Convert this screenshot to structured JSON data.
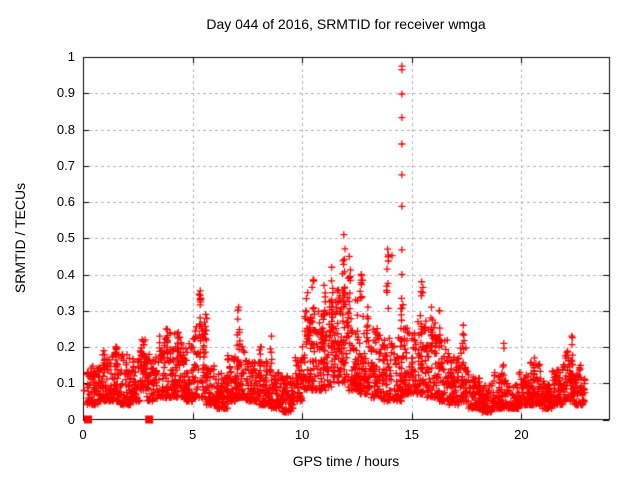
{
  "window": {
    "background": "#ffffff"
  },
  "chart_data": {
    "type": "scatter",
    "title": "Day 044 of 2016, SRMTID for receiver wmga",
    "xlabel": "GPS time / hours",
    "ylabel": "SRMTID / TECUs",
    "xlim": [
      0,
      24
    ],
    "ylim": [
      0,
      1
    ],
    "xticks": [
      "0",
      "5",
      "10",
      "15",
      "20"
    ],
    "yticks": [
      "0",
      "0.1",
      "0.2",
      "0.3",
      "0.4",
      "0.5",
      "0.6",
      "0.7",
      "0.8",
      "0.9",
      "1"
    ],
    "grid": true,
    "legend": "none",
    "marker": "plus",
    "marker_color": "#ff0000",
    "grid_color": "#b3b3b3",
    "border_color": "#000000",
    "band_segments": [
      [
        0.2,
        0.7,
        0.04,
        0.15,
        60
      ],
      [
        0.7,
        1.2,
        0.05,
        0.17,
        60
      ],
      [
        1.2,
        1.7,
        0.05,
        0.2,
        60
      ],
      [
        1.7,
        2.2,
        0.04,
        0.18,
        60
      ],
      [
        2.2,
        2.6,
        0.05,
        0.17,
        48
      ],
      [
        2.6,
        2.9,
        0.08,
        0.22,
        40
      ],
      [
        2.9,
        3.4,
        0.05,
        0.18,
        60
      ],
      [
        3.4,
        3.9,
        0.06,
        0.24,
        60
      ],
      [
        3.9,
        4.5,
        0.06,
        0.24,
        70
      ],
      [
        4.5,
        5.0,
        0.05,
        0.21,
        60
      ],
      [
        5.0,
        5.6,
        0.06,
        0.27,
        70
      ],
      [
        5.6,
        6.1,
        0.04,
        0.15,
        60
      ],
      [
        6.1,
        6.6,
        0.03,
        0.13,
        60
      ],
      [
        6.6,
        7.0,
        0.05,
        0.18,
        48
      ],
      [
        7.0,
        7.4,
        0.06,
        0.22,
        48
      ],
      [
        7.4,
        8.0,
        0.05,
        0.18,
        70
      ],
      [
        8.0,
        8.6,
        0.04,
        0.16,
        70
      ],
      [
        8.6,
        9.1,
        0.03,
        0.13,
        60
      ],
      [
        9.1,
        9.6,
        0.02,
        0.12,
        60
      ],
      [
        9.6,
        10.0,
        0.05,
        0.18,
        48
      ],
      [
        10.0,
        10.6,
        0.08,
        0.3,
        72
      ],
      [
        10.6,
        11.1,
        0.08,
        0.3,
        65
      ],
      [
        11.1,
        11.6,
        0.09,
        0.33,
        65
      ],
      [
        11.6,
        12.1,
        0.1,
        0.36,
        70
      ],
      [
        12.1,
        12.6,
        0.08,
        0.33,
        65
      ],
      [
        12.6,
        13.1,
        0.07,
        0.3,
        62
      ],
      [
        13.1,
        13.6,
        0.06,
        0.26,
        60
      ],
      [
        13.6,
        14.1,
        0.05,
        0.24,
        60
      ],
      [
        14.1,
        14.6,
        0.05,
        0.23,
        60
      ],
      [
        14.6,
        15.1,
        0.07,
        0.26,
        60
      ],
      [
        15.1,
        15.7,
        0.07,
        0.28,
        70
      ],
      [
        15.7,
        16.2,
        0.06,
        0.27,
        62
      ],
      [
        16.2,
        16.7,
        0.05,
        0.23,
        60
      ],
      [
        16.7,
        17.2,
        0.04,
        0.18,
        60
      ],
      [
        17.2,
        17.6,
        0.05,
        0.2,
        48
      ],
      [
        17.6,
        18.1,
        0.03,
        0.12,
        58
      ],
      [
        18.1,
        18.7,
        0.02,
        0.1,
        68
      ],
      [
        18.7,
        19.3,
        0.03,
        0.13,
        68
      ],
      [
        19.3,
        19.9,
        0.03,
        0.1,
        68
      ],
      [
        19.9,
        20.4,
        0.04,
        0.13,
        60
      ],
      [
        20.4,
        20.9,
        0.04,
        0.16,
        60
      ],
      [
        20.9,
        21.4,
        0.03,
        0.11,
        60
      ],
      [
        21.4,
        21.9,
        0.04,
        0.14,
        60
      ],
      [
        21.9,
        22.4,
        0.05,
        0.19,
        58
      ],
      [
        22.4,
        22.9,
        0.04,
        0.15,
        55
      ]
    ],
    "spike_columns": [
      [
        0.95,
        0.15,
        0.19,
        4
      ],
      [
        1.5,
        0.15,
        0.2,
        5
      ],
      [
        2.7,
        0.17,
        0.22,
        6
      ],
      [
        3.8,
        0.18,
        0.25,
        6
      ],
      [
        4.35,
        0.17,
        0.24,
        5
      ],
      [
        5.35,
        0.22,
        0.355,
        9
      ],
      [
        5.6,
        0.2,
        0.29,
        6
      ],
      [
        7.1,
        0.18,
        0.31,
        8
      ],
      [
        8.1,
        0.13,
        0.2,
        4
      ],
      [
        8.6,
        0.13,
        0.23,
        5
      ],
      [
        10.25,
        0.2,
        0.35,
        8
      ],
      [
        10.5,
        0.22,
        0.385,
        8
      ],
      [
        11.0,
        0.22,
        0.37,
        9
      ],
      [
        11.35,
        0.25,
        0.42,
        8
      ],
      [
        11.9,
        0.3,
        0.51,
        12
      ],
      [
        12.15,
        0.28,
        0.45,
        8
      ],
      [
        12.7,
        0.3,
        0.4,
        8
      ],
      [
        13.0,
        0.2,
        0.31,
        6
      ],
      [
        13.9,
        0.3,
        0.47,
        9
      ],
      [
        14.55,
        0.2,
        0.4,
        7
      ],
      [
        15.45,
        0.22,
        0.38,
        9
      ],
      [
        15.9,
        0.2,
        0.31,
        7
      ],
      [
        16.25,
        0.17,
        0.3,
        6
      ],
      [
        17.35,
        0.14,
        0.26,
        6
      ],
      [
        19.2,
        0.09,
        0.21,
        5
      ],
      [
        20.6,
        0.08,
        0.17,
        5
      ],
      [
        22.3,
        0.08,
        0.23,
        6
      ]
    ],
    "outlier_column": {
      "x": 14.55,
      "values": [
        0.975,
        0.965,
        0.898,
        0.833,
        0.76,
        0.675,
        0.588,
        0.468
      ]
    },
    "extra_points": [
      [
        0.05,
        0.08
      ],
      [
        14.1,
        0.452
      ]
    ],
    "zero_square_points_x": [
      0.23,
      3.02
    ]
  }
}
